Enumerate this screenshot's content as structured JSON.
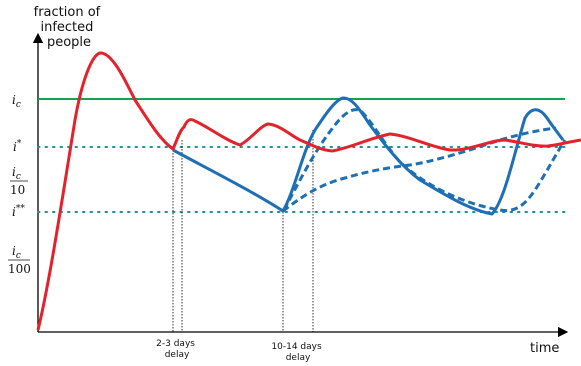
{
  "y_axis_label": [
    "fraction of",
    "infected",
    "people"
  ],
  "x_axis_label": "time",
  "y_levels": {
    "ic": {
      "main": "i",
      "sub": "c"
    },
    "i_star": {
      "main": "i",
      "sup": "*"
    },
    "ic_over_10": {
      "num_main": "i",
      "num_sub": "c",
      "den": "10"
    },
    "i_star_star": {
      "main": "i",
      "sup": "**"
    },
    "ic_over_100": {
      "num_main": "i",
      "num_sub": "c",
      "den": "100"
    }
  },
  "annotations": {
    "delay_short": [
      "2-3 days",
      "delay"
    ],
    "delay_long": [
      "10-14 days",
      "delay"
    ]
  },
  "colors": {
    "threshold_line": "#1aa050",
    "red_curve": "#e3222b",
    "blue_curve": "#1f6fb5",
    "dotted_level": "#1f8f9a",
    "axis": "#000000"
  }
}
